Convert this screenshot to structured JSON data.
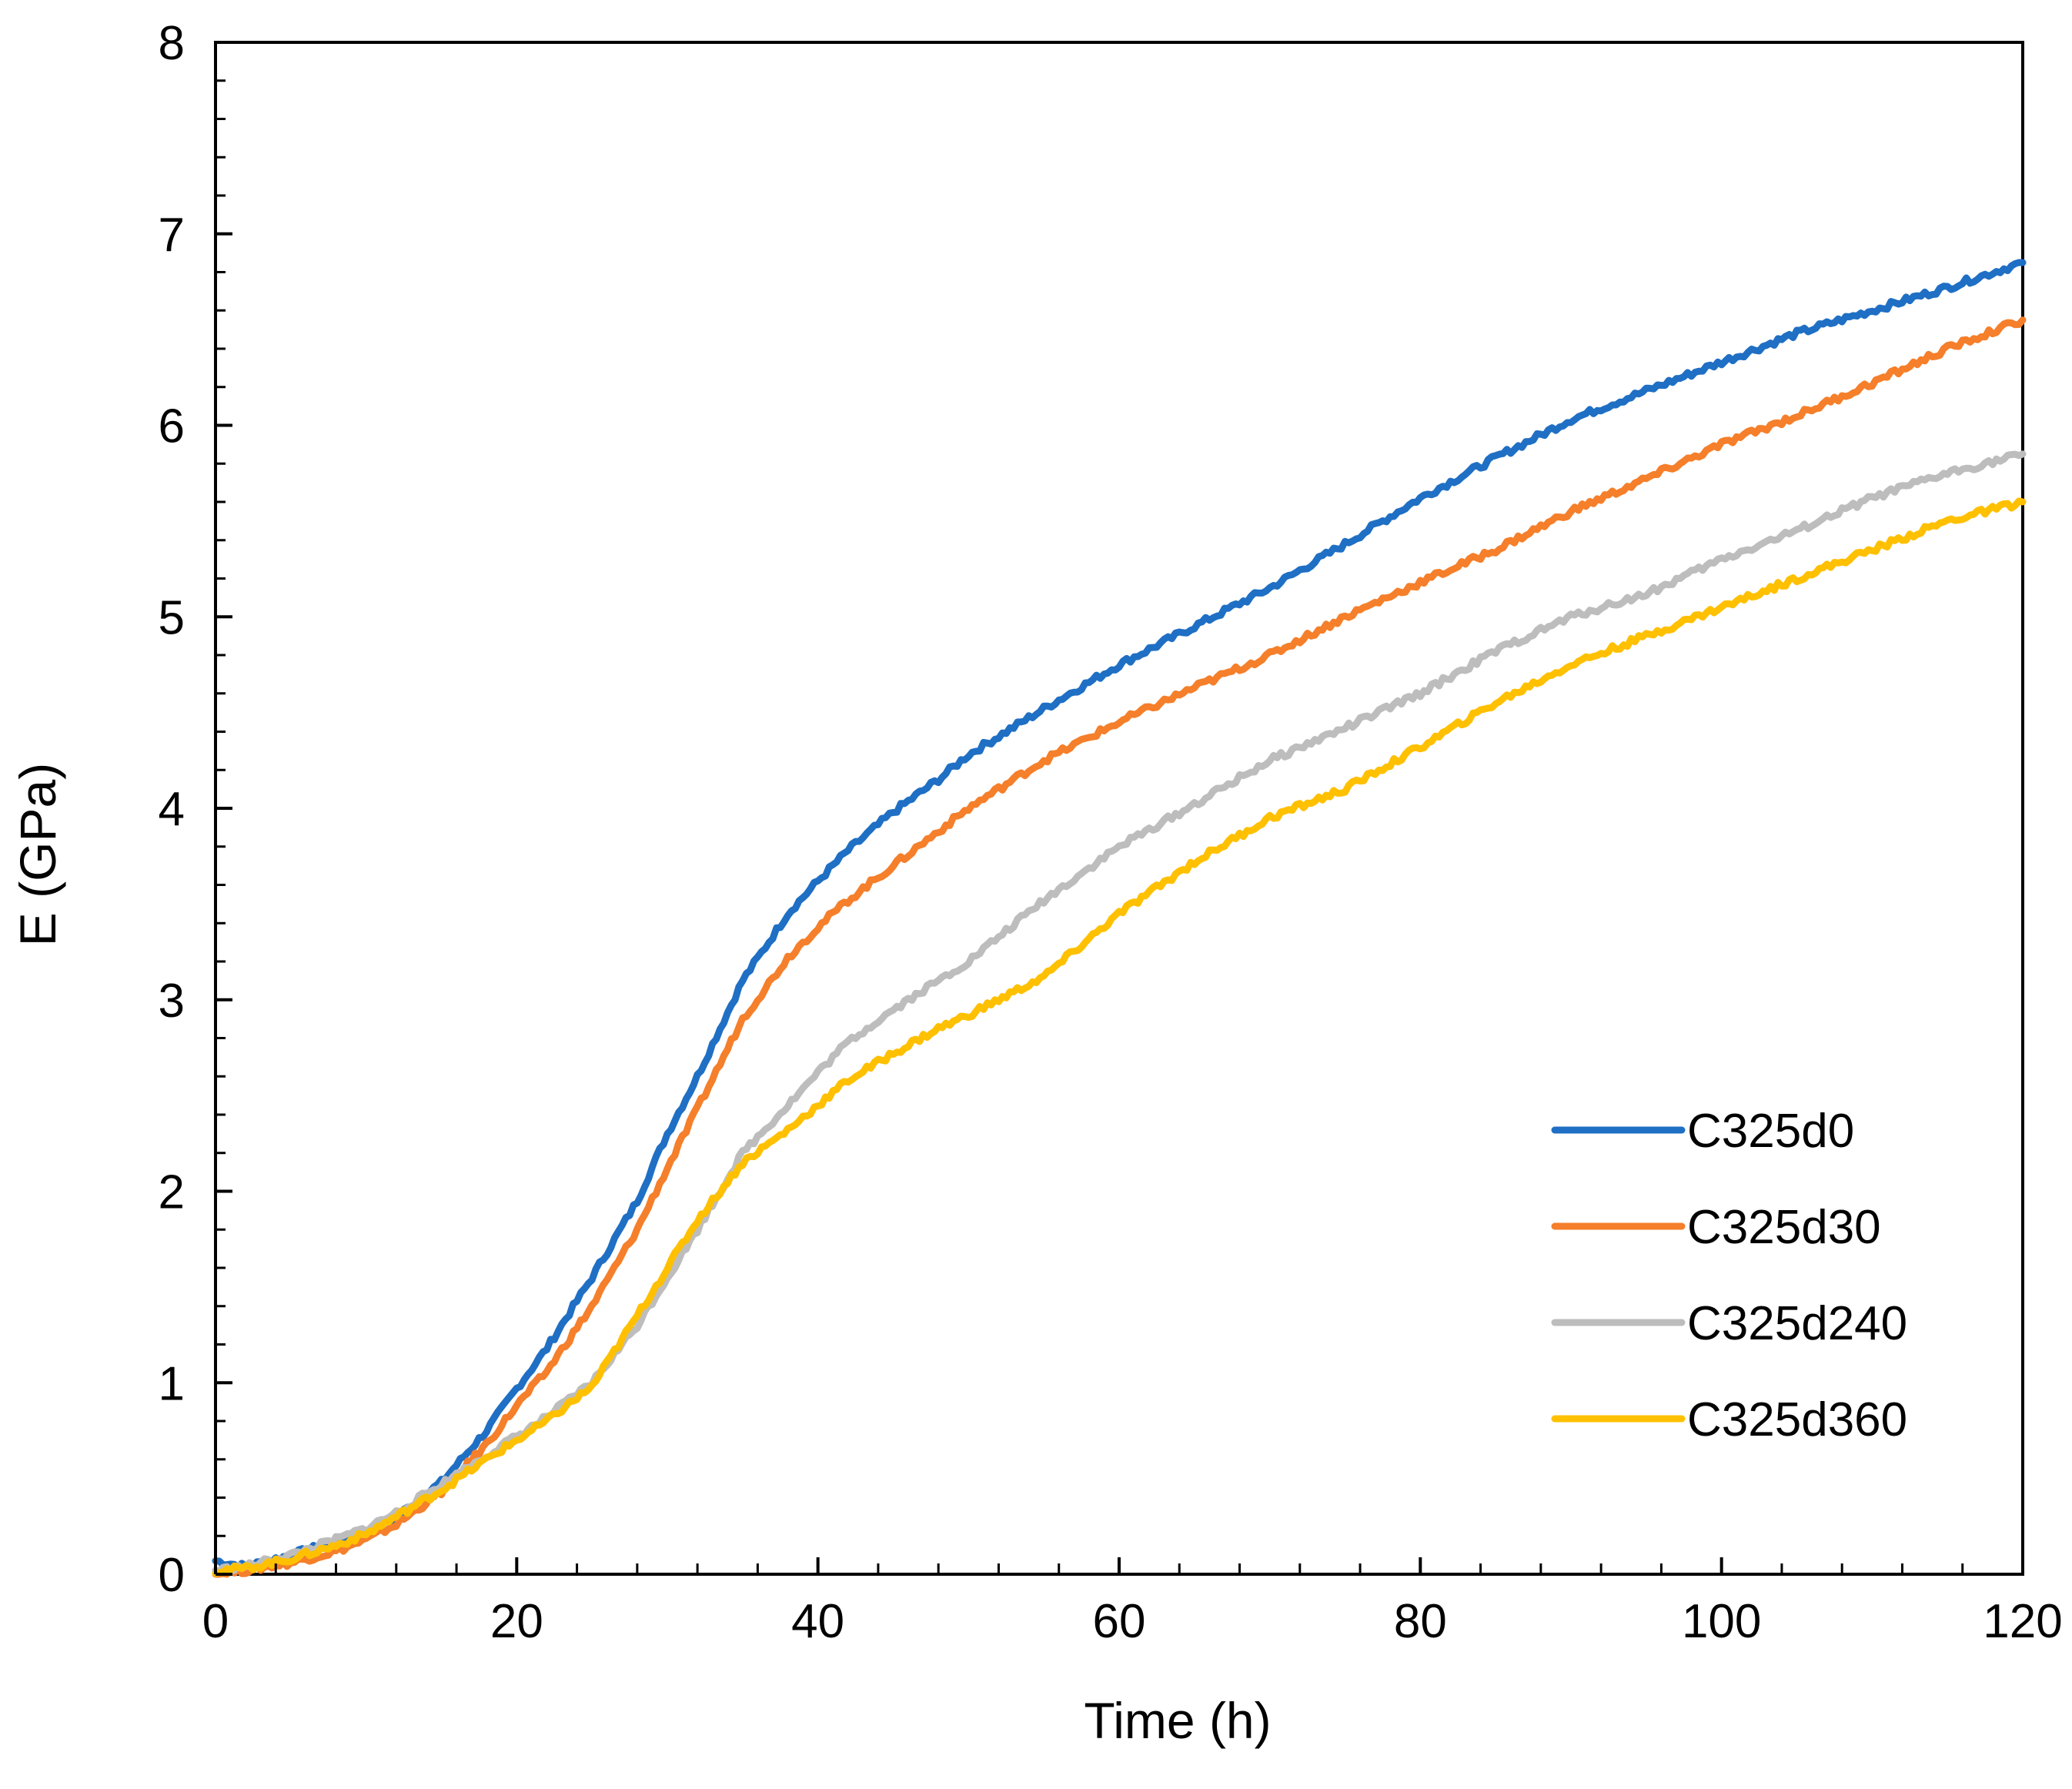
{
  "chart_data": {
    "type": "line",
    "title": "",
    "xlabel": "Time (h)",
    "ylabel": "E (GPa)",
    "xlim": [
      0,
      120
    ],
    "ylim": [
      0,
      8
    ],
    "xticks": [
      "0",
      "20",
      "40",
      "60",
      "80",
      "100",
      "120"
    ],
    "yticks": [
      "0",
      "1",
      "2",
      "3",
      "4",
      "5",
      "6",
      "7",
      "8"
    ],
    "grid": false,
    "legend_position": "lower-right",
    "series": [
      {
        "name": "C325d0",
        "color": "#1F6FC4",
        "x": [
          0,
          2,
          5,
          8,
          10,
          12,
          15,
          18,
          20,
          22,
          25,
          28,
          30,
          32,
          35,
          38,
          40,
          42,
          45,
          48,
          50,
          55,
          60,
          65,
          70,
          75,
          80,
          85,
          90,
          95,
          100,
          105,
          110,
          115,
          120
        ],
        "y": [
          0.07,
          0.04,
          0.1,
          0.17,
          0.22,
          0.3,
          0.48,
          0.75,
          0.97,
          1.18,
          1.55,
          1.95,
          2.3,
          2.6,
          3.1,
          3.45,
          3.62,
          3.78,
          3.98,
          4.15,
          4.28,
          4.52,
          4.75,
          4.95,
          5.15,
          5.38,
          5.62,
          5.83,
          6.03,
          6.18,
          6.33,
          6.48,
          6.6,
          6.72,
          6.85
        ]
      },
      {
        "name": "C325d30",
        "color": "#F57F2A",
        "x": [
          0,
          2,
          5,
          8,
          10,
          12,
          15,
          18,
          20,
          22,
          25,
          28,
          30,
          32,
          35,
          38,
          40,
          42,
          45,
          48,
          50,
          55,
          60,
          65,
          70,
          75,
          80,
          85,
          90,
          95,
          100,
          105,
          110,
          115,
          120
        ],
        "y": [
          0.0,
          0.02,
          0.06,
          0.12,
          0.18,
          0.26,
          0.43,
          0.68,
          0.88,
          1.06,
          1.4,
          1.8,
          2.12,
          2.43,
          2.9,
          3.22,
          3.38,
          3.52,
          3.7,
          3.88,
          4.0,
          4.25,
          4.45,
          4.63,
          4.8,
          5.0,
          5.18,
          5.35,
          5.55,
          5.72,
          5.9,
          6.05,
          6.22,
          6.4,
          6.55
        ]
      },
      {
        "name": "C325d240",
        "color": "#BDBDBD",
        "x": [
          0,
          2,
          5,
          8,
          10,
          12,
          15,
          18,
          20,
          22,
          25,
          28,
          30,
          32,
          35,
          38,
          40,
          42,
          45,
          48,
          50,
          55,
          60,
          65,
          70,
          75,
          80,
          85,
          90,
          95,
          100,
          105,
          110,
          115,
          120
        ],
        "y": [
          0.02,
          0.04,
          0.1,
          0.18,
          0.24,
          0.32,
          0.47,
          0.62,
          0.72,
          0.82,
          1.0,
          1.3,
          1.55,
          1.8,
          2.2,
          2.45,
          2.62,
          2.78,
          2.95,
          3.1,
          3.2,
          3.52,
          3.8,
          4.02,
          4.25,
          4.42,
          4.6,
          4.82,
          5.0,
          5.12,
          5.3,
          5.45,
          5.62,
          5.75,
          5.85
        ]
      },
      {
        "name": "C325d360",
        "color": "#FFC000",
        "x": [
          0,
          2,
          5,
          8,
          10,
          12,
          15,
          18,
          20,
          22,
          25,
          28,
          30,
          32,
          35,
          38,
          40,
          42,
          45,
          48,
          50,
          55,
          60,
          65,
          70,
          75,
          80,
          85,
          90,
          95,
          100,
          105,
          110,
          115,
          120
        ],
        "y": [
          0.02,
          0.03,
          0.08,
          0.15,
          0.21,
          0.3,
          0.44,
          0.6,
          0.7,
          0.8,
          0.98,
          1.35,
          1.6,
          1.85,
          2.15,
          2.32,
          2.45,
          2.58,
          2.72,
          2.85,
          2.92,
          3.12,
          3.45,
          3.72,
          3.95,
          4.1,
          4.32,
          4.55,
          4.75,
          4.9,
          5.05,
          5.2,
          5.35,
          5.5,
          5.6
        ]
      }
    ]
  }
}
